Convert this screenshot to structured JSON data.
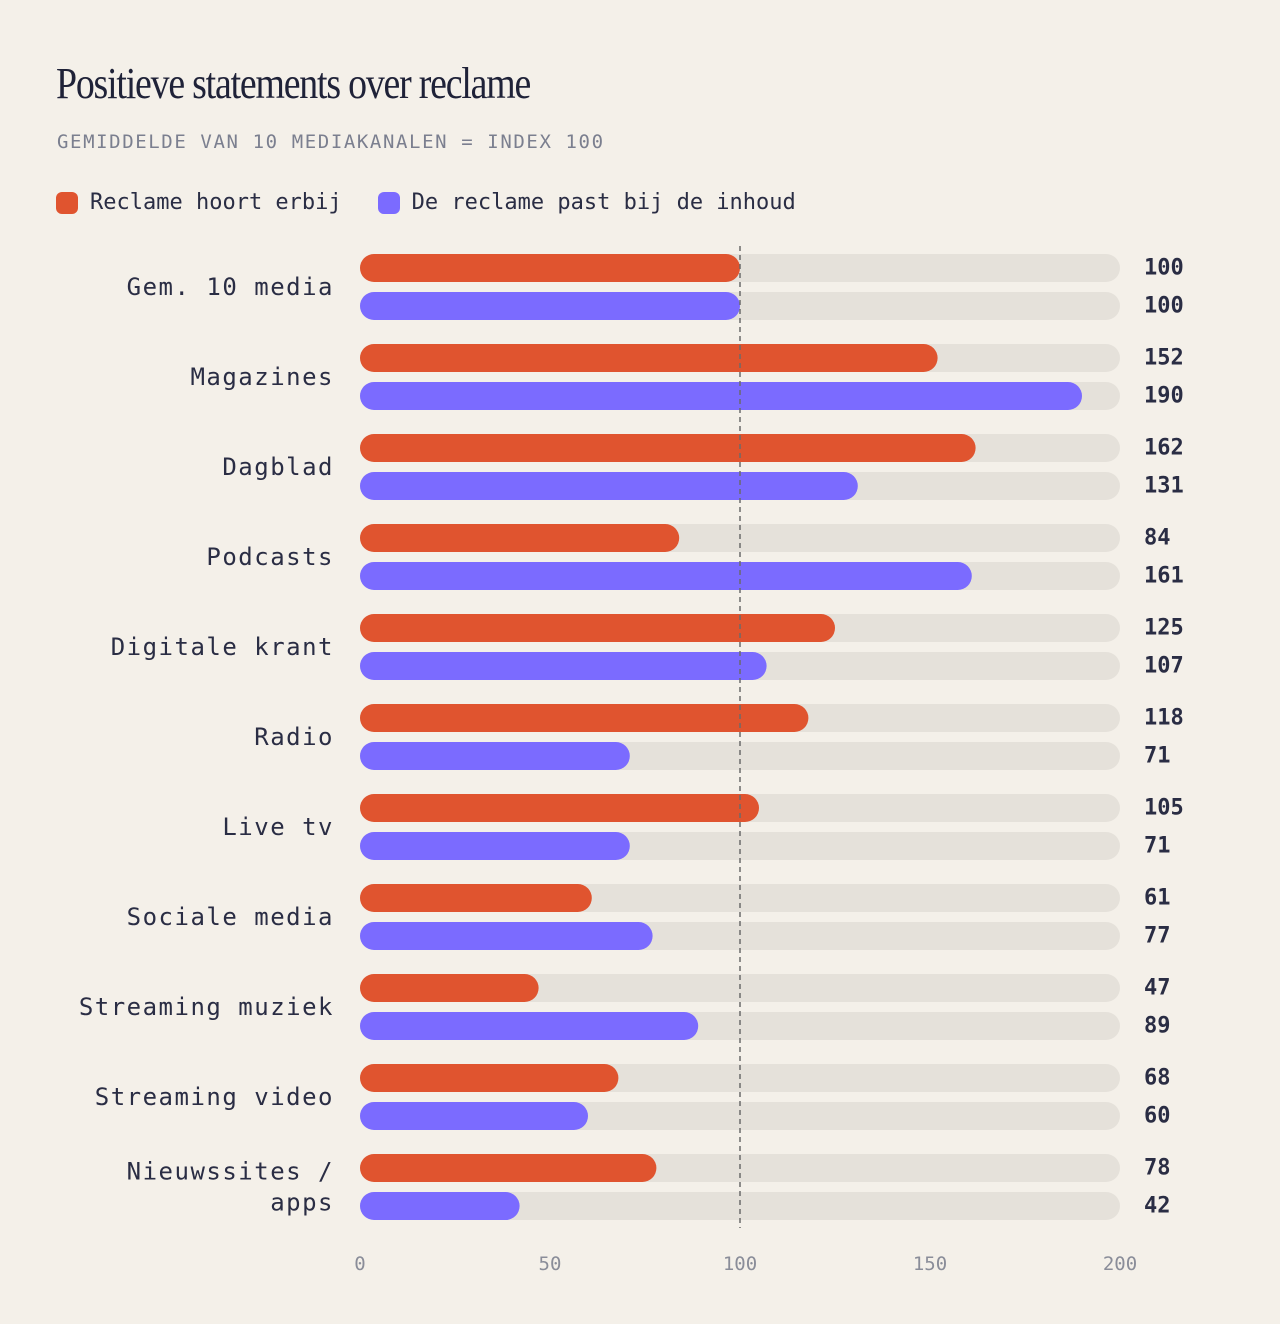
{
  "colors": {
    "series_a": "#e0542f",
    "series_b": "#7b6bff",
    "track": "#e5e1da",
    "reference_line": "#6b6b6b",
    "axis_text": "#8a8d99",
    "text": "#2a2d44"
  },
  "chart_data": {
    "type": "bar",
    "orientation": "horizontal",
    "title": "Positieve statements over reclame",
    "subtitle": "GEMIDDELDE VAN 10 MEDIAKANALEN = INDEX 100",
    "categories": [
      [
        "Gem. 10 media"
      ],
      [
        "Magazines"
      ],
      [
        "Dagblad"
      ],
      [
        "Podcasts"
      ],
      [
        "Digitale krant"
      ],
      [
        "Radio"
      ],
      [
        "Live tv"
      ],
      [
        "Sociale media"
      ],
      [
        "Streaming muziek"
      ],
      [
        "Streaming video"
      ],
      [
        "Nieuwssites /",
        "apps"
      ]
    ],
    "series": [
      {
        "name": "Reclame hoort erbij",
        "values": [
          100,
          152,
          162,
          84,
          125,
          118,
          105,
          61,
          47,
          68,
          78
        ]
      },
      {
        "name": "De reclame past bij de inhoud",
        "values": [
          100,
          190,
          131,
          161,
          107,
          71,
          71,
          77,
          89,
          60,
          42
        ]
      }
    ],
    "xlim": [
      0,
      200
    ],
    "xticks": [
      0,
      50,
      100,
      150,
      200
    ],
    "reference_value": 100,
    "grid": false,
    "legend_position": "top-left"
  }
}
